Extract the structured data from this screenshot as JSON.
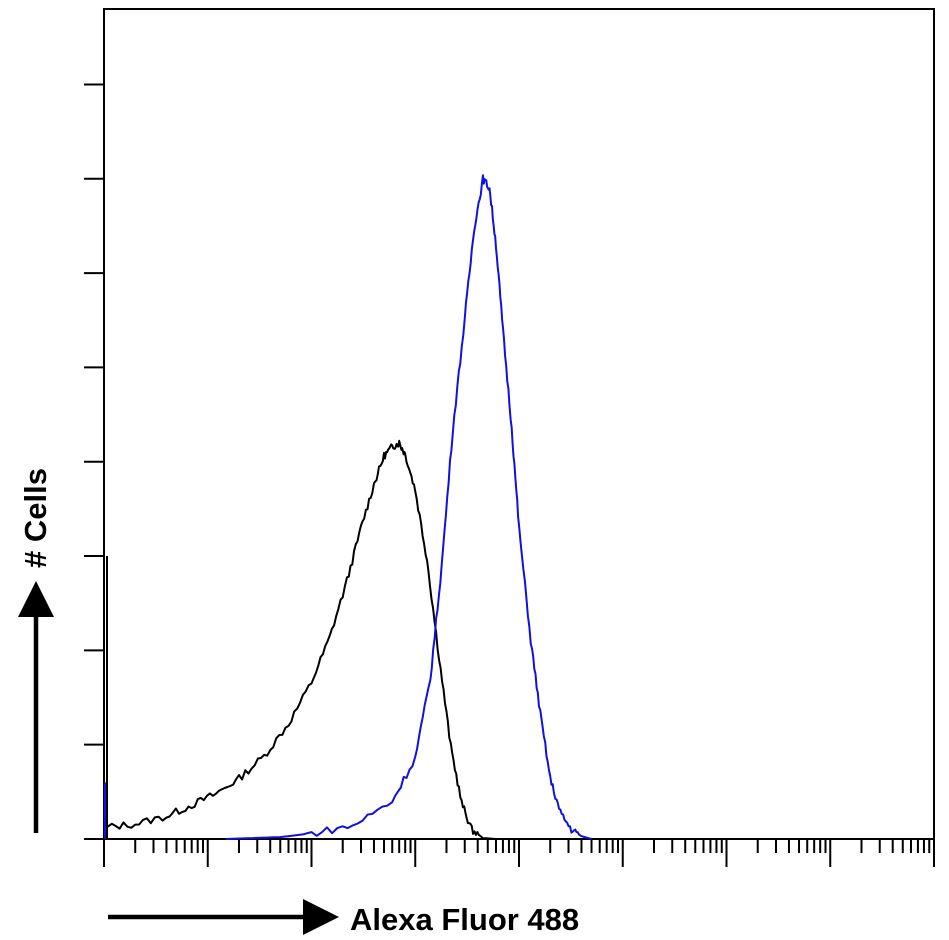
{
  "chart_data": {
    "type": "line",
    "title": "",
    "xlabel": "Alexa Fluor 488",
    "ylabel": "# Cells",
    "x_scale": "log",
    "xlim": [
      1,
      100000000
    ],
    "ylim": [
      0,
      8.8
    ],
    "y_ticks": [
      0,
      1,
      2,
      3,
      4,
      5,
      6,
      7,
      8
    ],
    "grid": false,
    "legend": "none",
    "series": [
      {
        "color": "#000000",
        "points": [
          [
            1.0,
            0.12
          ],
          [
            2.0,
            0.16
          ],
          [
            4.0,
            0.24
          ],
          [
            7.0,
            0.36
          ],
          [
            12.0,
            0.48
          ],
          [
            20.0,
            0.64
          ],
          [
            35.0,
            0.88
          ],
          [
            60.0,
            1.22
          ],
          [
            100.0,
            1.66
          ],
          [
            150.0,
            2.14
          ],
          [
            220.0,
            2.74
          ],
          [
            300.0,
            3.3
          ],
          [
            400.0,
            3.76
          ],
          [
            500.0,
            4.06
          ],
          [
            600.0,
            4.16
          ],
          [
            700.0,
            4.2
          ],
          [
            800.0,
            4.08
          ],
          [
            1000.0,
            3.7
          ],
          [
            1300.0,
            2.96
          ],
          [
            1700.0,
            1.92
          ],
          [
            2200.0,
            0.98
          ],
          [
            2800.0,
            0.38
          ],
          [
            3500.0,
            0.1
          ],
          [
            4500.0,
            0.01
          ],
          [
            6000.0,
            0.0
          ]
        ]
      },
      {
        "color": "#1010e0",
        "points": [
          [
            15.0,
            0.0
          ],
          [
            50.0,
            0.02
          ],
          [
            100.0,
            0.06
          ],
          [
            250.0,
            0.14
          ],
          [
            600.0,
            0.4
          ],
          [
            1000.0,
            0.86
          ],
          [
            1400.0,
            1.7
          ],
          [
            1800.0,
            2.9
          ],
          [
            2300.0,
            4.34
          ],
          [
            3000.0,
            5.52
          ],
          [
            3700.0,
            6.48
          ],
          [
            4500.0,
            7.0
          ],
          [
            5200.0,
            6.9
          ],
          [
            6000.0,
            6.3
          ],
          [
            7000.0,
            5.4
          ],
          [
            8500.0,
            4.36
          ],
          [
            10000.0,
            3.3
          ],
          [
            13000.0,
            2.1
          ],
          [
            16000.0,
            1.34
          ],
          [
            20000.0,
            0.64
          ],
          [
            25000.0,
            0.28
          ],
          [
            32000.0,
            0.1
          ],
          [
            40000.0,
            0.03
          ],
          [
            50000.0,
            0.0
          ]
        ]
      }
    ]
  }
}
